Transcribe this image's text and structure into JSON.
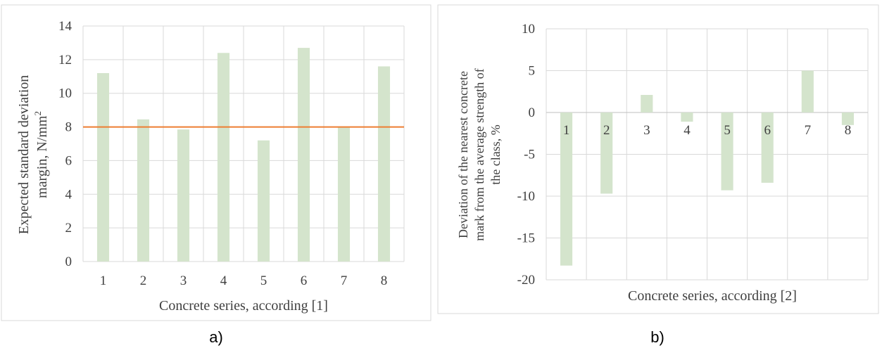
{
  "panels": [
    {
      "label": "a)"
    },
    {
      "label": "b)"
    }
  ],
  "chart_data": [
    {
      "type": "bar",
      "categories": [
        "1",
        "2",
        "3",
        "4",
        "5",
        "6",
        "7",
        "8"
      ],
      "values": [
        11.2,
        8.45,
        7.85,
        12.4,
        7.2,
        12.7,
        8.0,
        11.6
      ],
      "title": "",
      "xlabel": "Concrete series, according [1]",
      "ylabel_line1": "Expected standard deviation",
      "ylabel_line2": "margin, N/mm",
      "ylabel_sup": "2",
      "ylim": [
        0,
        14
      ],
      "yticks": [
        "0",
        "2",
        "4",
        "6",
        "8",
        "10",
        "12",
        "14"
      ],
      "reference_line": 8.0,
      "grid": true,
      "colors": {
        "bar": "#d4e4cc",
        "reference_line": "#ed7d31",
        "grid": "#d9d9d9"
      }
    },
    {
      "type": "bar",
      "categories": [
        "1",
        "2",
        "3",
        "4",
        "5",
        "6",
        "7",
        "8"
      ],
      "values": [
        -18.3,
        -9.7,
        2.1,
        -1.1,
        -9.3,
        -8.4,
        5.0,
        -1.5
      ],
      "title": "",
      "xlabel": "Concrete series, according [2]",
      "ylabel_line1": "Deviation of the nearest concrete",
      "ylabel_line2": "mark from the average strength of",
      "ylabel_line3": "the class, %",
      "ylim": [
        -20,
        10
      ],
      "yticks": [
        "-20",
        "-15",
        "-10",
        "-5",
        "0",
        "5",
        "10"
      ],
      "grid": true,
      "colors": {
        "bar": "#d4e4cc",
        "grid": "#d9d9d9"
      }
    }
  ]
}
